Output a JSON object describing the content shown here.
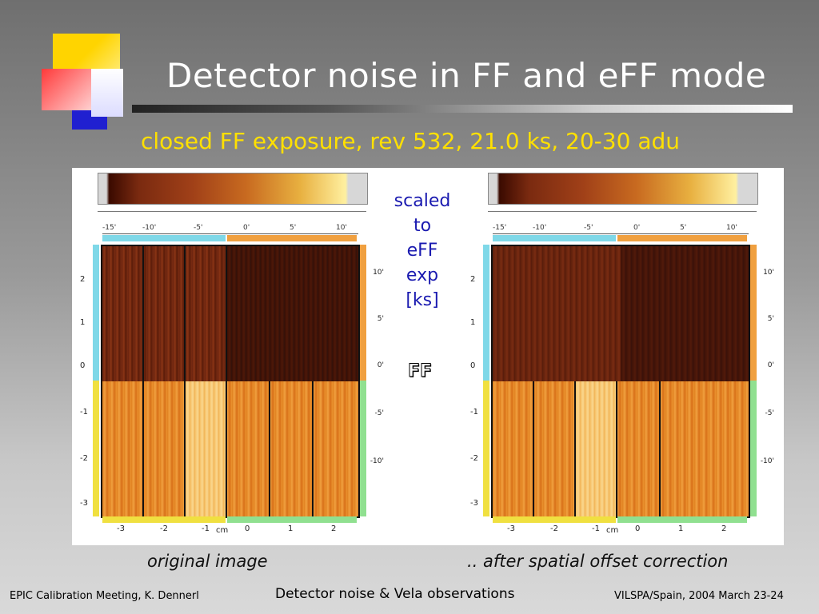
{
  "slide": {
    "title": "Detector noise in FF and eFF mode",
    "subtitle": "closed  FF exposure, rev 532, 21.0 ks, 20-30 adu",
    "note_lines": [
      "scaled",
      "to",
      "eFF",
      "exp",
      "[ks]"
    ],
    "mode_label": "FF",
    "captions": {
      "left": "original image",
      "right": ".. after spatial offset correction"
    },
    "footer": {
      "left": "EPIC Calibration Meeting, K. Dennerl",
      "center": "Detector noise & Vela observations",
      "right": "VILSPA/Spain, 2004 March 23-24"
    }
  },
  "figure": {
    "top_scale": [
      "-15'",
      "-10'",
      "-5'",
      "0'",
      "5'",
      "10'"
    ],
    "bottom_scale": [
      "-3",
      "-2",
      "-1",
      "cm",
      "0",
      "1",
      "2"
    ],
    "left_scale": [
      "2",
      "1",
      "0",
      "-1",
      "-2",
      "-3"
    ],
    "right_scale": [
      "10'",
      "5'",
      "0'",
      "-5'",
      "-10'"
    ]
  },
  "colors": {
    "title": "#ffffff",
    "subtitle": "#ffe000",
    "note": "#1a1ab0",
    "dark_half": "#4a1808",
    "bright_half": "#e88a2c"
  },
  "icons": [
    "slide-decoration-squares"
  ]
}
